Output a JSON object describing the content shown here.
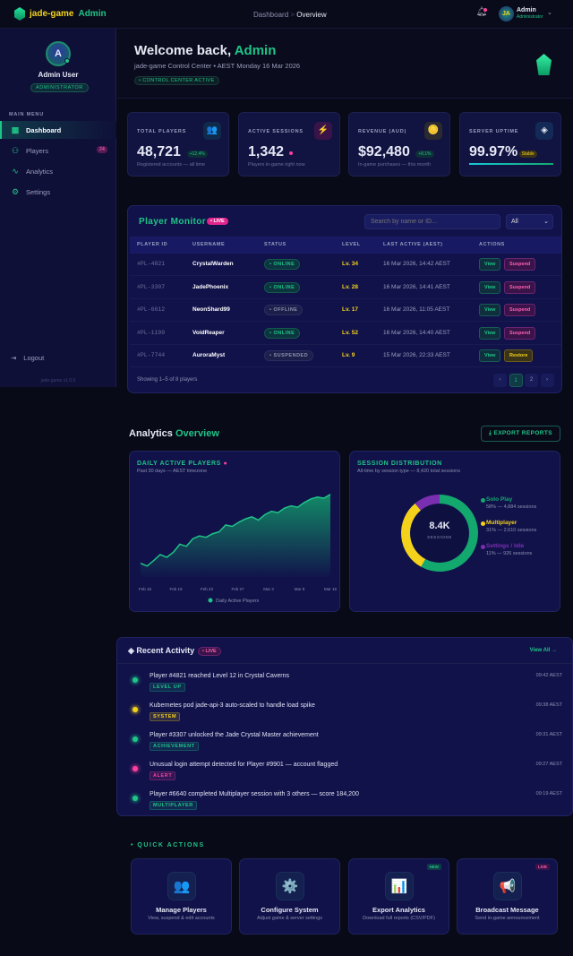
{
  "topbar": {
    "brand_a": "jade-game",
    "brand_b": "Admin",
    "breadcrumb": [
      "Dashboard",
      "Overview"
    ],
    "breadcrumb_sep": ">",
    "user_initials": "JA",
    "user_name": "Admin",
    "user_role": "Administrator"
  },
  "sidebar": {
    "avatar_letter": "A",
    "name": "Admin User",
    "role": "ADMINISTRATOR",
    "menu_label": "MAIN MENU",
    "items": [
      {
        "label": "Dashboard",
        "icon": "grid-icon",
        "active": true
      },
      {
        "label": "Players",
        "icon": "users-icon",
        "badge": "24"
      },
      {
        "label": "Analytics",
        "icon": "pulse-icon"
      },
      {
        "label": "Settings",
        "icon": "gear-icon"
      }
    ],
    "logout": "Logout",
    "version": "jade-game v1.0.0"
  },
  "hero": {
    "title_a": "Welcome back, ",
    "title_b": "Admin",
    "subtitle": "jade-game Control Center • AEST Monday 16 Mar 2026",
    "status": "• CONTROL CENTER ACTIVE"
  },
  "stats": [
    {
      "label": "TOTAL PLAYERS",
      "value": "48,721",
      "change": "+12.4%",
      "note": "Registered accounts — all time",
      "icon": "👥",
      "color": "#0f2a4a"
    },
    {
      "label": "ACTIVE SESSIONS",
      "value": "1,342",
      "note": "Players in-game right now",
      "icon": "⚡",
      "color": "#3a1448"
    },
    {
      "label": "REVENUE (AUD)",
      "value": "$92,480",
      "change": "+8.1%",
      "note": "In-game purchases — this month",
      "icon": "🪙",
      "color": "#2a2a30"
    },
    {
      "label": "SERVER UPTIME",
      "value": "99.97%",
      "change": "Stable",
      "icon": "◈",
      "color": "#122a55",
      "progress": 0.9997
    }
  ],
  "player_monitor": {
    "title": "Player Monitor",
    "live": "• LIVE",
    "search_placeholder": "Search by name or ID...",
    "filter": "All",
    "columns": [
      "PLAYER ID",
      "USERNAME",
      "STATUS",
      "LEVEL",
      "LAST ACTIVE (AEST)",
      "ACTIONS"
    ],
    "rows": [
      {
        "id": "#PL-4821",
        "user": "CrystalWarden",
        "status": "• ONLINE",
        "status_kind": "online",
        "level": "Lv. 34",
        "last": "16 Mar 2026, 14:42 AEST",
        "a1": "View",
        "a2": "Suspend"
      },
      {
        "id": "#PL-3307",
        "user": "JadePhoenix",
        "status": "• ONLINE",
        "status_kind": "online",
        "level": "Lv. 28",
        "last": "16 Mar 2026, 14:41 AEST",
        "a1": "View",
        "a2": "Suspend"
      },
      {
        "id": "#PL-6612",
        "user": "NeonShard99",
        "status": "• OFFLINE",
        "status_kind": "offline",
        "level": "Lv. 17",
        "last": "16 Mar 2026, 11:05 AEST",
        "a1": "View",
        "a2": "Suspend"
      },
      {
        "id": "#PL-1199",
        "user": "VoidReaper",
        "status": "• ONLINE",
        "status_kind": "online",
        "level": "Lv. 52",
        "last": "16 Mar 2026, 14:40 AEST",
        "a1": "View",
        "a2": "Suspend"
      },
      {
        "id": "#PL-7744",
        "user": "AuroraMyst",
        "status": "• SUSPENDED",
        "status_kind": "suspended",
        "level": "Lv. 9",
        "last": "15 Mar 2026, 22:33 AEST",
        "a1": "View",
        "a2": "Restore"
      }
    ],
    "showing": "Showing 1–5 of 8 players",
    "pages": [
      "‹",
      "1",
      "2",
      "›"
    ]
  },
  "analytics": {
    "title_a": "Analytics ",
    "title_b": "Overview",
    "export": "EXPORT REPORTS"
  },
  "chart_data": [
    {
      "type": "area",
      "title": "DAILY ACTIVE PLAYERS",
      "subtitle": "Past 30 days — AEST timezone",
      "x_ticks": [
        "Feb 15",
        "Feb 19",
        "Feb 23",
        "Feb 27",
        "Mar 3",
        "Mar 9",
        "Mar 16"
      ],
      "series": [
        {
          "name": "Daily Active Players",
          "color": "#1fc487",
          "values": [
            50,
            40,
            60,
            82,
            72,
            90,
            120,
            112,
            140,
            150,
            145,
            158,
            165,
            190,
            185,
            200,
            212,
            220,
            208,
            228,
            240,
            235,
            252,
            260,
            255,
            272,
            285,
            292,
            288,
            302
          ]
        }
      ],
      "grid": false,
      "legend": "bottom"
    },
    {
      "type": "pie",
      "donut": true,
      "title": "SESSION DISTRIBUTION",
      "subtitle": "All-time by session type — 8,420 total sessions",
      "center_value": "8.4K",
      "center_label": "SESSIONS",
      "slices": [
        {
          "name": "Solo Play",
          "percent": 58,
          "sessions": 4884,
          "detail": "58% — 4,884 sessions",
          "color": "#13a86e"
        },
        {
          "name": "Multiplayer",
          "percent": 31,
          "sessions": 2610,
          "detail": "31% — 2,610 sessions",
          "color": "#f4d21b"
        },
        {
          "name": "Settings / Idle",
          "percent": 11,
          "sessions": 926,
          "detail": "11% — 926 sessions",
          "color": "#7a2fb0"
        }
      ],
      "legend": "right"
    }
  ],
  "activity": {
    "title": "Recent Activity",
    "live": "• LIVE",
    "view_all": "View All →",
    "items": [
      {
        "text": "Player #4821 reached Level 12 in Crystal Caverns",
        "tag": "LEVEL UP",
        "time": "09:42 AEST",
        "color": "#1fc487"
      },
      {
        "text": "Kubernetes pod jade-api-3 auto-scaled to handle load spike",
        "tag": "SYSTEM",
        "time": "09:38 AEST",
        "color": "#f4d21b"
      },
      {
        "text": "Player #3307 unlocked the Jade Crystal Master achievement",
        "tag": "ACHIEVEMENT",
        "time": "09:31 AEST",
        "color": "#1fc487"
      },
      {
        "text": "Unusual login attempt detected for Player #9901 — account flagged",
        "tag": "ALERT",
        "time": "09:27 AEST",
        "color": "#ff3f9d"
      },
      {
        "text": "Player #6640 completed Multiplayer session with 3 others — score 184,200",
        "tag": "MULTIPLAYER",
        "time": "09:19 AEST",
        "color": "#1fc487"
      }
    ]
  },
  "quick_actions": {
    "title": "• QUICK ACTIONS",
    "items": [
      {
        "title": "Manage Players",
        "sub": "View, suspend & edit accounts",
        "icon": "👥"
      },
      {
        "title": "Configure System",
        "sub": "Adjust game & server settings",
        "icon": "⚙️"
      },
      {
        "title": "Export Analytics",
        "sub": "Download full reports (CSV/PDF)",
        "icon": "📊",
        "badge": "NEW"
      },
      {
        "title": "Broadcast Message",
        "sub": "Send in-game announcement",
        "icon": "📢",
        "badge": "LIVE"
      }
    ]
  }
}
